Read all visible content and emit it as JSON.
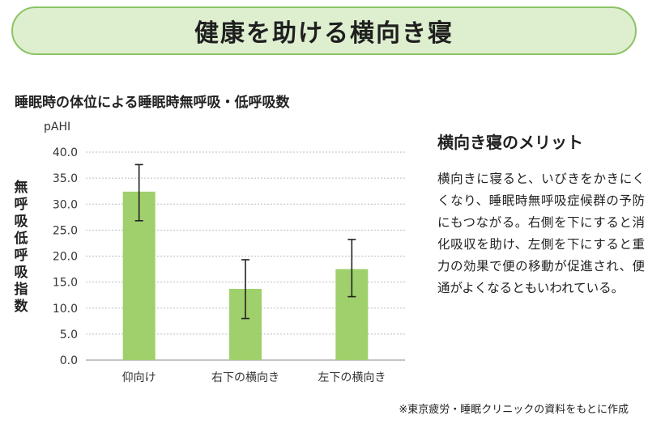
{
  "banner": {
    "title": "健康を助ける横向き寝"
  },
  "chart_data": {
    "type": "bar",
    "title": "睡眠時の体位による睡眠時無呼吸・低呼吸数",
    "unit": "pAHI",
    "ylabel": "無呼吸低呼吸指数",
    "categories": [
      "仰向け",
      "右下の横向き",
      "左下の横向き"
    ],
    "values": [
      32.4,
      13.7,
      17.5
    ],
    "error_low": [
      26.8,
      8.0,
      12.2
    ],
    "error_high": [
      37.6,
      19.3,
      23.2
    ],
    "ylim": [
      0,
      40
    ],
    "yticks": [
      "0.0",
      "5.0",
      "10.0",
      "15.0",
      "20.0",
      "25.0",
      "30.0",
      "35.0",
      "40.0"
    ],
    "grid": true,
    "colors": {
      "bar": "#9fd06c",
      "error": "#222222",
      "grid": "#bdbdbd"
    }
  },
  "sidebar": {
    "heading": "横向き寝のメリット",
    "body": "横向きに寝ると、いびきをかきにくくなり、睡眠時無呼吸症候群の予防にもつながる。右側を下にすると消化吸収を助け、左側を下にすると重力の効果で便の移動が促進され、便通がよくなるともいわれている。"
  },
  "footer": {
    "source": "※東京疲労・睡眠クリニックの資料をもとに作成"
  }
}
